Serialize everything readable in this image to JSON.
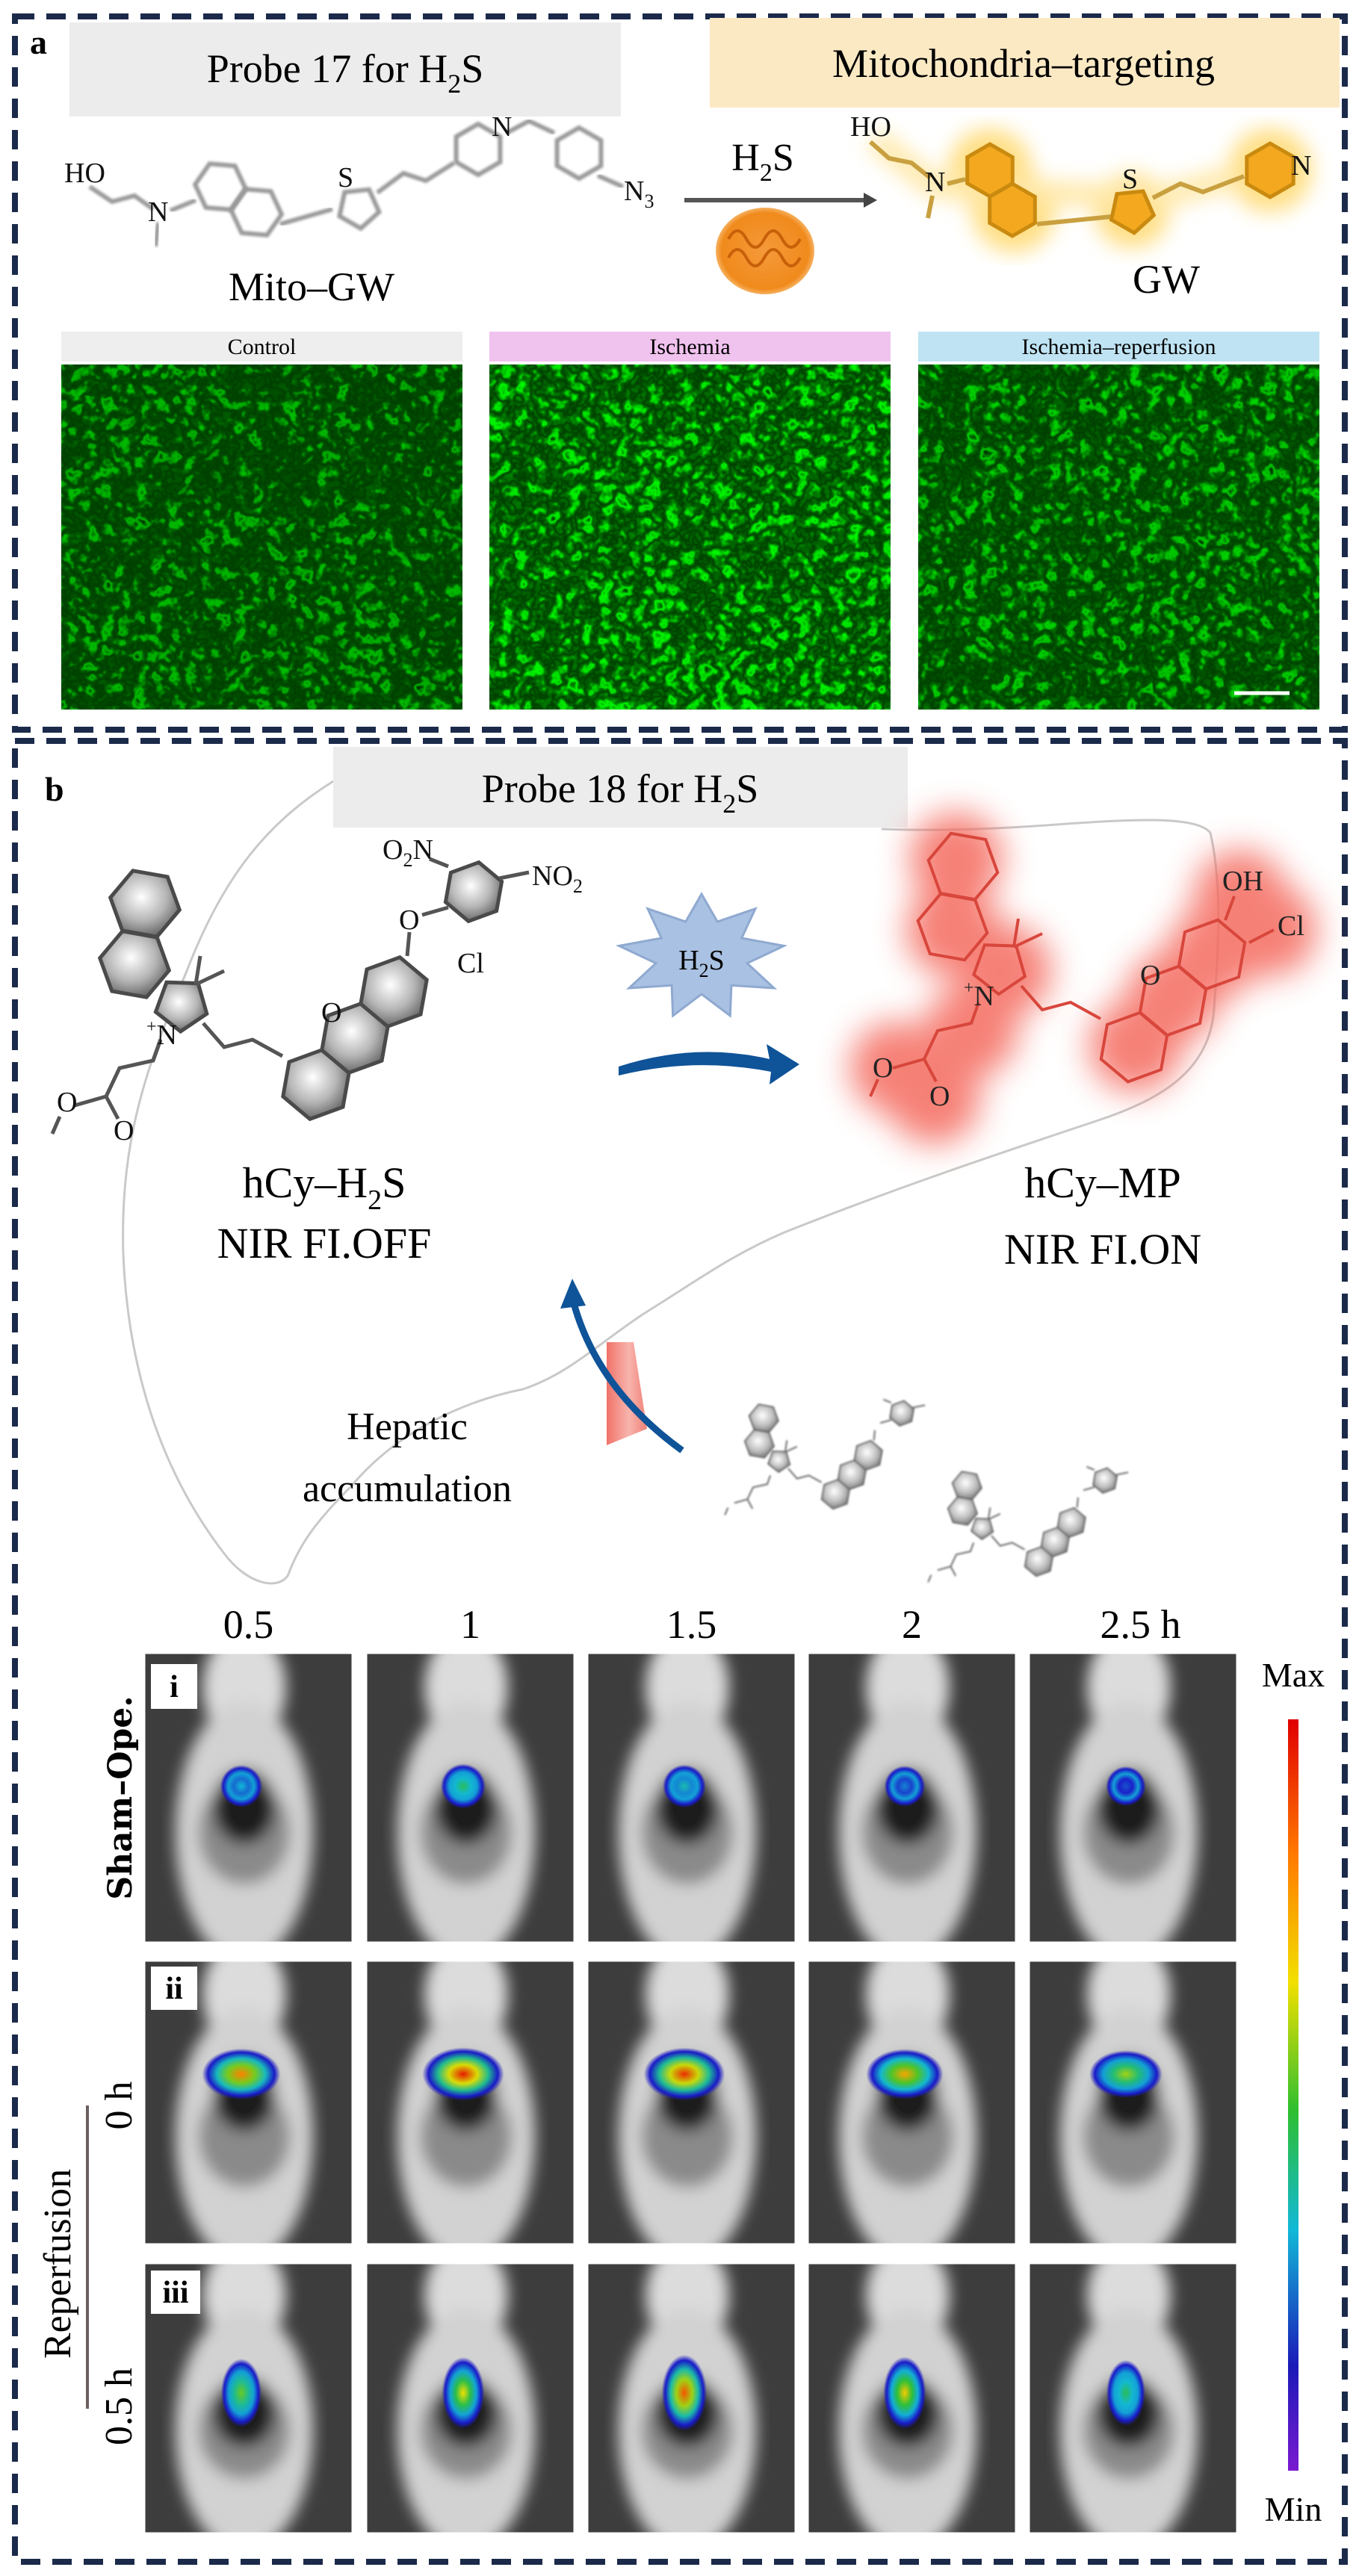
{
  "colors": {
    "border": "#1b2a4a",
    "title_box_gray": "#ececec",
    "title_box_yellow": "#fbe9c4",
    "label_control": "#eeeeee",
    "label_ischemia": "#f0c2ee",
    "label_ir": "#bfe3f2",
    "probe_product_glow": "#f7b52b",
    "nir_glow": "#f2655a",
    "arrow_blue": "#0f5398",
    "star_fill": "#a8c0e0"
  },
  "panel_a": {
    "label": "a",
    "title": {
      "pre": "Probe 17 for H",
      "sub": "2",
      "post": "S"
    },
    "banner": "Mitochondria–targeting",
    "reagent": {
      "pre": "H",
      "sub": "2",
      "post": "S"
    },
    "reactant_name": "Mito–GW",
    "product_name": "GW",
    "reactant_atoms": {
      "ho": "HO",
      "n_amine": "N",
      "s": "S",
      "n_pyr": "N",
      "n3": "N",
      "n3_sub": "3"
    },
    "product_atoms": {
      "ho": "HO",
      "n_amine": "N",
      "s": "S",
      "n_pyr": "N"
    },
    "mitochondrion_icon": "mitochondrion-icon",
    "micrographs": [
      {
        "label": "Control",
        "brightness": 0.55
      },
      {
        "label": "Ischemia",
        "brightness": 1.0
      },
      {
        "label": "Ischemia–reperfusion",
        "brightness": 0.7
      }
    ]
  },
  "panel_b": {
    "label": "b",
    "title": {
      "pre": "Probe 18 for H",
      "sub": "2",
      "post": "S"
    },
    "trigger": {
      "pre": "H",
      "sub": "2",
      "post": "S"
    },
    "reactant": {
      "name_pre": "hCy–H",
      "name_sub": "2",
      "name_post": "S",
      "status": "NIR FI.OFF"
    },
    "product": {
      "name": "hCy–MP",
      "status": "NIR FI.ON"
    },
    "reactant_atoms": {
      "n_plus": "N",
      "plus": "+",
      "o_ester1": "O",
      "o_ester2": "O",
      "o_ring": "O",
      "cl": "Cl",
      "o_ether": "O",
      "o2n_pre": "O",
      "o2n_sub": "2",
      "o2n_post": "N",
      "no2_pre": "NO",
      "no2_sub": "2"
    },
    "product_atoms": {
      "n_plus": "N",
      "plus": "+",
      "o_ester1": "O",
      "o_ester2": "O",
      "o_ring": "O",
      "oh": "OH",
      "cl": "Cl"
    },
    "hepatic": {
      "line1": "Hepatic",
      "line2": "accumulation"
    },
    "imaging": {
      "time_labels": [
        "0.5",
        "1",
        "1.5",
        "2",
        "2.5 h"
      ],
      "rows": [
        {
          "roman": "i",
          "group": "Sham–Ope.",
          "intensity": [
            0.35,
            0.5,
            0.4,
            0.28,
            0.22
          ]
        },
        {
          "roman": "ii",
          "group": "0 h",
          "intensity": [
            0.85,
            0.97,
            0.95,
            0.8,
            0.65
          ]
        },
        {
          "roman": "iii",
          "group": "0.5 h",
          "intensity": [
            0.6,
            0.72,
            0.9,
            0.75,
            0.5
          ]
        }
      ],
      "reperfusion_label": "Reperfusion",
      "colorbar": {
        "max": "Max",
        "min": "Min"
      }
    }
  }
}
